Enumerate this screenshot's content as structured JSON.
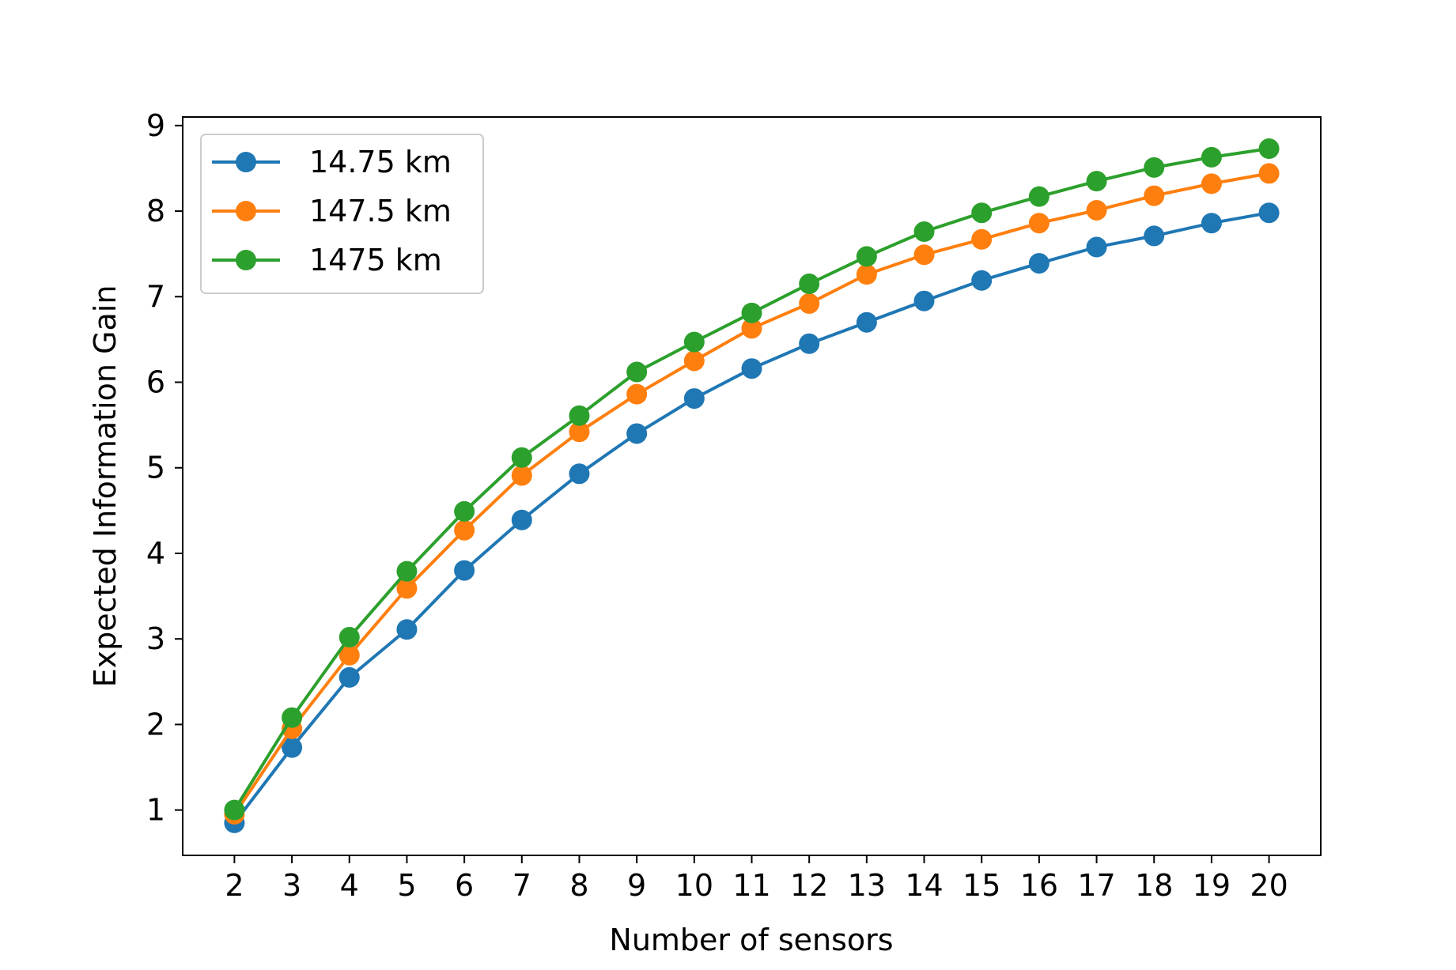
{
  "chart_data": {
    "type": "line",
    "xlabel": "Number of sensors",
    "ylabel": "Expected Information Gain",
    "x": [
      2,
      3,
      4,
      5,
      6,
      7,
      8,
      9,
      10,
      11,
      12,
      13,
      14,
      15,
      16,
      17,
      18,
      19,
      20
    ],
    "xlim": [
      1.1,
      20.9
    ],
    "ylim": [
      0.47,
      9.1
    ],
    "x_ticks": [
      "2",
      "3",
      "4",
      "5",
      "6",
      "7",
      "8",
      "9",
      "10",
      "11",
      "12",
      "13",
      "14",
      "15",
      "16",
      "17",
      "18",
      "19",
      "20"
    ],
    "y_ticks": [
      "1",
      "2",
      "3",
      "4",
      "5",
      "6",
      "7",
      "8",
      "9"
    ],
    "grid": false,
    "legend_position": "top-left",
    "series": [
      {
        "name": "14.75 km",
        "color": "#1f77b4",
        "values": [
          0.85,
          1.73,
          2.55,
          3.11,
          3.8,
          4.39,
          4.93,
          5.4,
          5.81,
          6.16,
          6.45,
          6.7,
          6.95,
          7.19,
          7.39,
          7.58,
          7.71,
          7.86,
          7.98
        ]
      },
      {
        "name": "147.5 km",
        "color": "#ff7f0e",
        "values": [
          0.95,
          1.95,
          2.81,
          3.59,
          4.27,
          4.91,
          5.42,
          5.86,
          6.25,
          6.63,
          6.92,
          7.26,
          7.49,
          7.67,
          7.86,
          8.01,
          8.18,
          8.32,
          8.44
        ]
      },
      {
        "name": "1475 km",
        "color": "#2ca02c",
        "values": [
          1.0,
          2.08,
          3.02,
          3.79,
          4.49,
          5.12,
          5.61,
          6.12,
          6.47,
          6.81,
          7.15,
          7.47,
          7.76,
          7.98,
          8.17,
          8.35,
          8.51,
          8.63,
          8.73
        ]
      }
    ]
  }
}
